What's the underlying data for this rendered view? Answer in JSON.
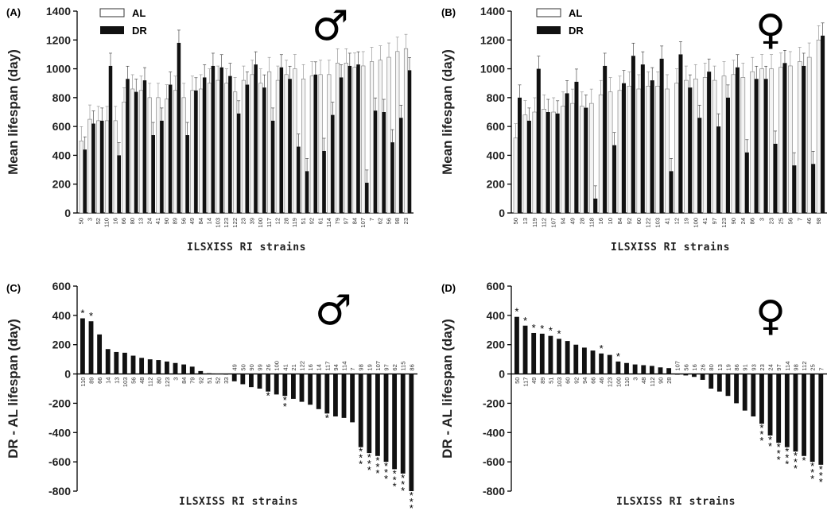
{
  "chart_data": [
    {
      "panel": "(A)",
      "type": "bar",
      "symbol": "♂",
      "xlabel": "ILSXISS RI strains",
      "ylabel": "Mean lifespan (day)",
      "ylim": [
        0,
        1400
      ],
      "yticks": [
        0,
        200,
        400,
        600,
        800,
        1000,
        1200,
        1400
      ],
      "legend": [
        "AL",
        "DR"
      ],
      "legend_position": "top-left",
      "categories": [
        "50",
        "3",
        "52",
        "110",
        "16",
        "66",
        "80",
        "13",
        "24",
        "41",
        "90",
        "89",
        "56",
        "49",
        "84",
        "14",
        "103",
        "123",
        "122",
        "23",
        "39",
        "100",
        "117",
        "12",
        "28",
        "119",
        "51",
        "92",
        "61",
        "114",
        "79",
        "97",
        "84",
        "107",
        "7",
        "62",
        "56",
        "98",
        "23"
      ],
      "series": [
        {
          "name": "AL",
          "values": [
            500,
            650,
            640,
            640,
            640,
            770,
            860,
            850,
            800,
            800,
            790,
            850,
            800,
            850,
            860,
            900,
            920,
            900,
            840,
            920,
            960,
            900,
            980,
            920,
            960,
            1000,
            930,
            950,
            960,
            960,
            1040,
            1040,
            1010,
            1020,
            1050,
            1060,
            1080,
            1120,
            1140
          ]
        },
        {
          "name": "DR",
          "values": [
            440,
            620,
            640,
            1020,
            400,
            930,
            840,
            920,
            540,
            640,
            890,
            1180,
            540,
            850,
            940,
            1020,
            1010,
            950,
            690,
            890,
            1030,
            870,
            640,
            1010,
            930,
            460,
            290,
            960,
            430,
            680,
            940,
            1020,
            1030,
            210,
            710,
            700,
            490,
            660,
            990
          ]
        }
      ]
    },
    {
      "panel": "(B)",
      "type": "bar",
      "symbol": "♀",
      "xlabel": "ILSXISS RI strains",
      "ylabel": "Mean lifespan (day)",
      "ylim": [
        0,
        1400
      ],
      "yticks": [
        0,
        200,
        400,
        600,
        800,
        1000,
        1200,
        1400
      ],
      "legend": [
        "AL",
        "DR"
      ],
      "legend_position": "top-left",
      "categories": [
        "50",
        "13",
        "119",
        "112",
        "107",
        "94",
        "49",
        "28",
        "118",
        "16",
        "10",
        "84",
        "92",
        "60",
        "122",
        "103",
        "41",
        "12",
        "19",
        "100",
        "41",
        "97",
        "123",
        "90",
        "24",
        "86",
        "3",
        "23",
        "25",
        "56",
        "7",
        "46",
        "98"
      ],
      "series": [
        {
          "name": "AL",
          "values": [
            520,
            680,
            700,
            720,
            700,
            740,
            760,
            740,
            760,
            820,
            840,
            850,
            880,
            860,
            880,
            880,
            860,
            900,
            920,
            930,
            940,
            920,
            950,
            960,
            940,
            980,
            1000,
            1000,
            1010,
            1020,
            1050,
            1080,
            1200
          ]
        },
        {
          "name": "DR",
          "values": [
            800,
            640,
            1000,
            700,
            690,
            830,
            910,
            730,
            100,
            1020,
            470,
            900,
            1090,
            1030,
            920,
            1070,
            290,
            1100,
            870,
            660,
            980,
            600,
            800,
            1010,
            420,
            930,
            930,
            480,
            1040,
            330,
            1020,
            340,
            1230
          ]
        }
      ]
    },
    {
      "panel": "(C)",
      "type": "bar",
      "symbol": "♂",
      "xlabel": "ILSXISS RI strains",
      "ylabel": "DR - AL lifespan (day)",
      "ylim": [
        -800,
        600
      ],
      "yticks": [
        -800,
        -600,
        -400,
        -200,
        0,
        200,
        400,
        600
      ],
      "categories": [
        "110",
        "89",
        "66",
        "14",
        "13",
        "103",
        "56",
        "48",
        "112",
        "80",
        "123",
        "3",
        "84",
        "79",
        "92",
        "51",
        "52",
        "33",
        "49",
        "50",
        "90",
        "99",
        "26",
        "100",
        "41",
        "21",
        "122",
        "16",
        "14",
        "117",
        "94",
        "114",
        "7",
        "98",
        "19",
        "107",
        "97",
        "62",
        "115",
        "86"
      ],
      "values": [
        380,
        360,
        270,
        170,
        150,
        145,
        125,
        110,
        100,
        95,
        85,
        75,
        65,
        50,
        20,
        5,
        2,
        0,
        -50,
        -70,
        -90,
        -100,
        -120,
        -140,
        -150,
        -170,
        -190,
        -210,
        -240,
        -270,
        -290,
        -300,
        -330,
        -500,
        -540,
        -560,
        -600,
        -650,
        -680,
        -800
      ],
      "significance": [
        "*",
        "*",
        "",
        "",
        "",
        "",
        "",
        "",
        "",
        "",
        "",
        "",
        "",
        "",
        "",
        "",
        "",
        "",
        "",
        "",
        "",
        "",
        "*",
        "",
        "**",
        "",
        "",
        "",
        "",
        "*",
        "",
        "",
        "",
        "***",
        "***",
        "***",
        "***",
        "***",
        "***",
        "***"
      ]
    },
    {
      "panel": "(D)",
      "type": "bar",
      "symbol": "♀",
      "xlabel": "ILSXISS RI strains",
      "ylabel": "DR - AL lifespan (day)",
      "ylim": [
        -800,
        600
      ],
      "yticks": [
        -800,
        -600,
        -400,
        -200,
        0,
        200,
        400,
        600
      ],
      "categories": [
        "50",
        "117",
        "49",
        "89",
        "51",
        "103",
        "60",
        "92",
        "94",
        "66",
        "46",
        "123",
        "100",
        "110",
        "3",
        "48",
        "112",
        "90",
        "28",
        "107",
        "56",
        "16",
        "26",
        "80",
        "13",
        "19",
        "86",
        "91",
        "93",
        "23",
        "24",
        "97",
        "114",
        "98",
        "112",
        "25",
        "7"
      ],
      "values": [
        390,
        330,
        280,
        275,
        260,
        240,
        225,
        200,
        180,
        160,
        140,
        130,
        85,
        75,
        65,
        60,
        55,
        45,
        40,
        -5,
        -10,
        -20,
        -40,
        -100,
        -120,
        -150,
        -200,
        -250,
        -290,
        -340,
        -420,
        -470,
        -500,
        -530,
        -560,
        -600,
        -620
      ],
      "significance": [
        "*",
        "*",
        "*",
        "*",
        "*",
        "*",
        "",
        "",
        "",
        "",
        "*",
        "",
        "*",
        "",
        "",
        "",
        "",
        "",
        "",
        "",
        "",
        "",
        "",
        "",
        "",
        "",
        "",
        "",
        "",
        "***",
        "**",
        "***",
        "***",
        "***",
        "*",
        "***",
        "***"
      ]
    }
  ]
}
